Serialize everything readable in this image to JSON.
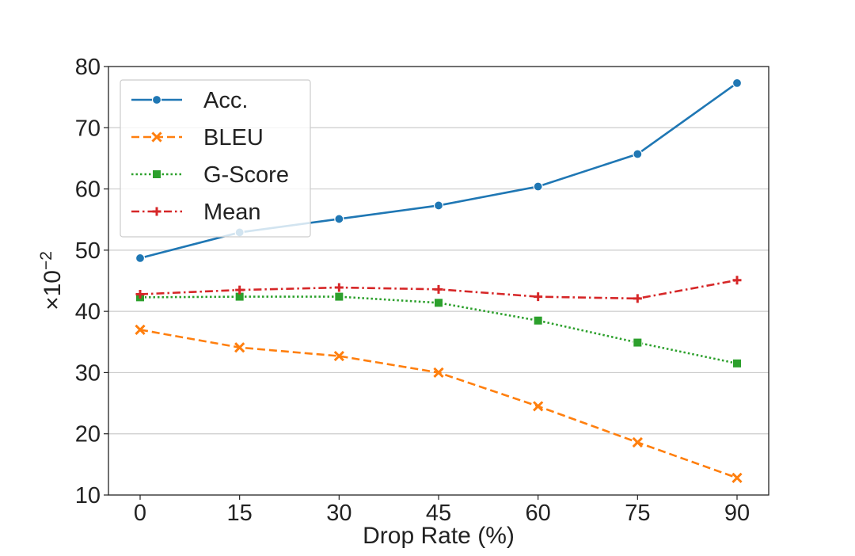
{
  "chart_data": {
    "type": "line",
    "x": [
      0,
      15,
      30,
      45,
      60,
      75,
      90
    ],
    "x_tick_labels": [
      "0",
      "15",
      "30",
      "45",
      "60",
      "75",
      "90"
    ],
    "y_tick_labels": [
      "10",
      "20",
      "30",
      "40",
      "50",
      "60",
      "70",
      "80"
    ],
    "xlabel": "Drop Rate (%)",
    "ylabel_base": "×10",
    "ylabel_exponent": "−2",
    "ylim": [
      10,
      80
    ],
    "grid": "horizontal",
    "legend_position": "top-left",
    "series": [
      {
        "name": "Acc.",
        "values": [
          48.7,
          52.9,
          55.1,
          57.3,
          60.4,
          65.7,
          77.3
        ],
        "color": "#1f77b4",
        "dash": "solid",
        "marker": "circle"
      },
      {
        "name": "BLEU",
        "values": [
          37.0,
          34.1,
          32.7,
          30.0,
          24.5,
          18.6,
          12.8
        ],
        "color": "#ff7f0e",
        "dash": "dashed",
        "marker": "x"
      },
      {
        "name": "G-Score",
        "values": [
          42.3,
          42.4,
          42.4,
          41.4,
          38.5,
          34.9,
          31.5
        ],
        "color": "#2ca02c",
        "dash": "dotted",
        "marker": "square"
      },
      {
        "name": "Mean",
        "values": [
          42.8,
          43.5,
          43.9,
          43.6,
          42.4,
          42.1,
          45.1
        ],
        "color": "#d62728",
        "dash": "dashdot",
        "marker": "plus"
      }
    ]
  }
}
